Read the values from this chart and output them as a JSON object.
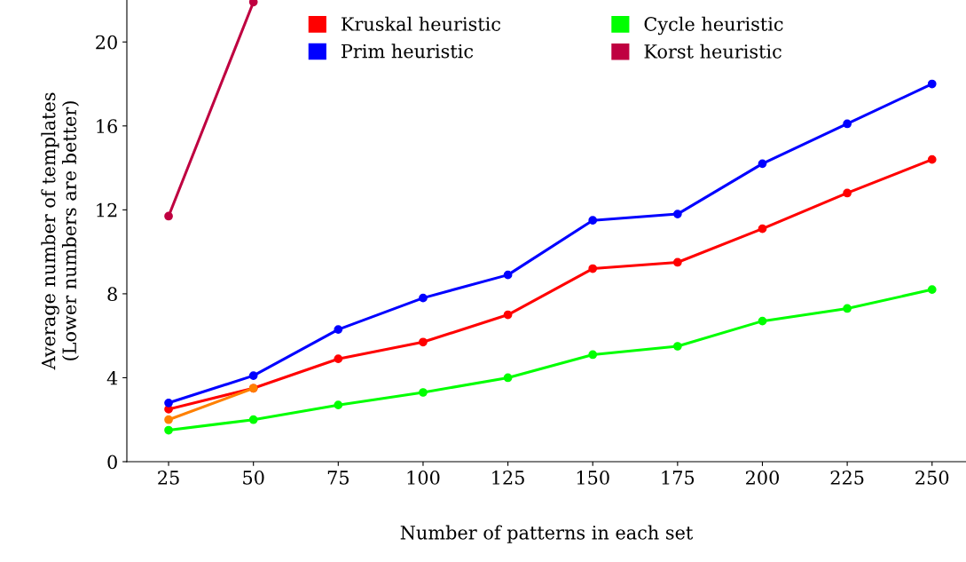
{
  "chart_data": {
    "type": "line",
    "xlabel": "Number of patterns in each set",
    "ylabel": "Average number of templates\n(Lower numbers are better)",
    "x": [
      25,
      50,
      75,
      100,
      125,
      150,
      175,
      200,
      225,
      250
    ],
    "series": [
      {
        "name": "Kruskal heuristic",
        "color": "#ff0000",
        "values": [
          2.5,
          3.5,
          4.9,
          5.7,
          7.0,
          9.2,
          9.5,
          11.1,
          12.8,
          14.4
        ]
      },
      {
        "name": "Prim heuristic",
        "color": "#0000ff",
        "values": [
          2.8,
          4.1,
          6.3,
          7.8,
          8.9,
          11.5,
          11.8,
          14.2,
          16.1,
          18.0
        ]
      },
      {
        "name": "Cycle heuristic",
        "color": "#00ff00",
        "values": [
          1.5,
          2.0,
          2.7,
          3.3,
          4.0,
          5.1,
          5.5,
          6.7,
          7.3,
          8.2
        ]
      },
      {
        "color": "#ff8000",
        "values": [
          2.0,
          3.5,
          null,
          null,
          null,
          null,
          null,
          null,
          null,
          null
        ]
      },
      {
        "name": "Korst heuristic",
        "color": "#bf0040",
        "values": [
          11.7,
          21.9,
          null,
          null,
          null,
          null,
          null,
          null,
          null,
          null
        ]
      }
    ],
    "xlim": [
      12.7,
      260
    ],
    "ylim": [
      0,
      22
    ],
    "xticks": [
      25,
      50,
      75,
      100,
      125,
      150,
      175,
      200,
      225,
      250
    ],
    "yticks": [
      0,
      4,
      8,
      12,
      16,
      20
    ],
    "grid": false,
    "legend": "top",
    "marker": "circle",
    "line_style": "solid"
  }
}
